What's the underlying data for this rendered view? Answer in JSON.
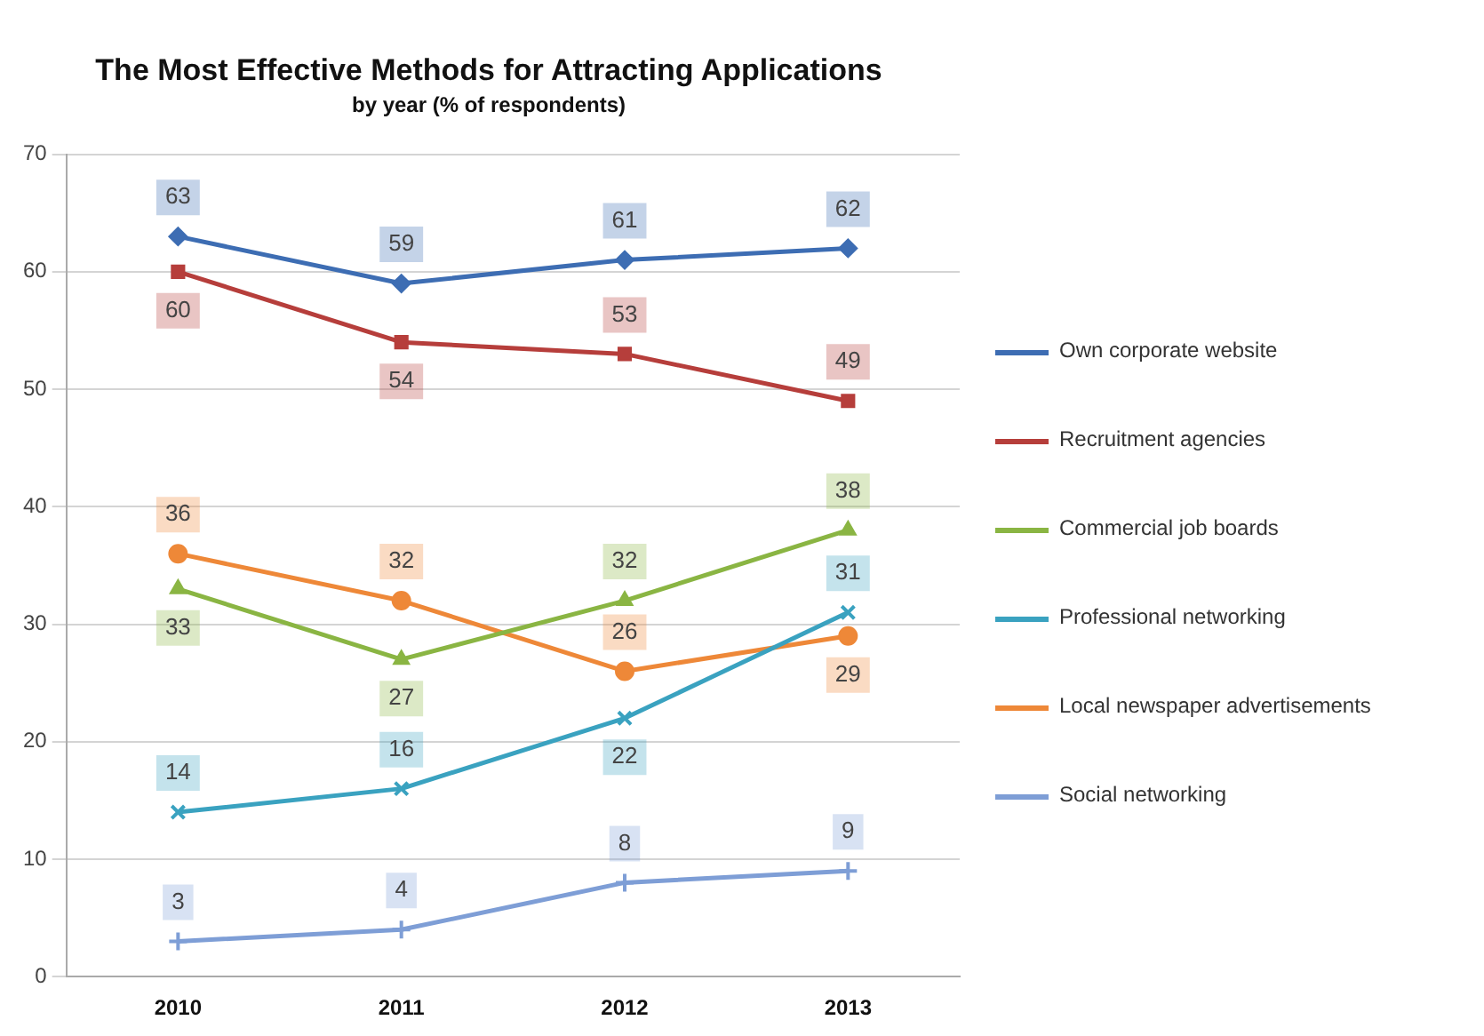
{
  "chart_data": {
    "type": "line",
    "title": "The Most Effective Methods for Attracting Applications",
    "subtitle": "by year (% of respondents)",
    "categories": [
      "2010",
      "2011",
      "2012",
      "2013"
    ],
    "series": [
      {
        "name": "Own corporate website",
        "color": "#3d6db3",
        "marker": "diamond",
        "values": [
          63,
          59,
          61,
          62
        ]
      },
      {
        "name": "Recruitment agencies",
        "color": "#b63e3b",
        "marker": "square",
        "values": [
          60,
          54,
          53,
          49
        ]
      },
      {
        "name": "Commercial job boards",
        "color": "#8ab543",
        "marker": "triangle",
        "values": [
          33,
          27,
          32,
          38
        ]
      },
      {
        "name": "Professional networking",
        "color": "#3aa2c0",
        "marker": "cross",
        "values": [
          14,
          16,
          22,
          31
        ]
      },
      {
        "name": "Local newspaper advertisements",
        "color": "#ee8838",
        "marker": "circle",
        "values": [
          36,
          32,
          26,
          29
        ]
      },
      {
        "name": "Social networking",
        "color": "#7e9ed6",
        "marker": "plus",
        "values": [
          3,
          4,
          8,
          9
        ]
      }
    ],
    "ylim": [
      0,
      70
    ],
    "yticks": [
      0,
      10,
      20,
      30,
      40,
      50,
      60,
      70
    ],
    "grid": "y",
    "legend": "right",
    "data_labels": true,
    "line_style": "solid"
  }
}
